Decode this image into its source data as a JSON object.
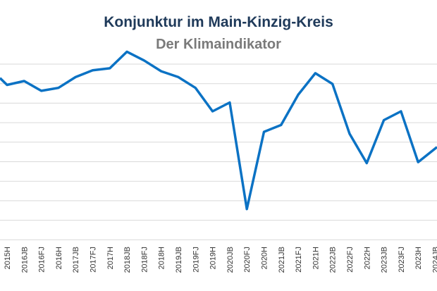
{
  "chart_data": {
    "type": "line",
    "title": "Konjunktur im Main-Kinzig-Kreis",
    "subtitle": "Der Klimaindikator",
    "xlabel": "",
    "ylabel": "",
    "grid": true,
    "ylim": [
      0,
      8
    ],
    "categories": [
      "2015H",
      "2016JB",
      "2016FJ",
      "2016H",
      "2017JB",
      "2017FJ",
      "2017H",
      "2018JB",
      "2018FJ",
      "2018H",
      "2019JB",
      "2019FJ",
      "2019H",
      "2020JB",
      "2020FJ",
      "2020H",
      "2021JB",
      "2021FJ",
      "2021H",
      "2022JB",
      "2022FJ",
      "2022H",
      "2023JB",
      "2023FJ",
      "2023H",
      "2024JB"
    ],
    "x_edge": {
      "left_value": 7.25,
      "right_value": 3.65
    },
    "values": [
      6.9,
      7.1,
      6.6,
      6.75,
      7.3,
      7.65,
      7.75,
      8.6,
      8.15,
      7.6,
      7.3,
      6.75,
      5.55,
      6.0,
      0.55,
      4.5,
      4.85,
      6.4,
      7.5,
      6.95,
      4.4,
      2.9,
      5.1,
      5.55,
      2.95,
      3.65
    ],
    "line_color": "#0b72c4"
  }
}
